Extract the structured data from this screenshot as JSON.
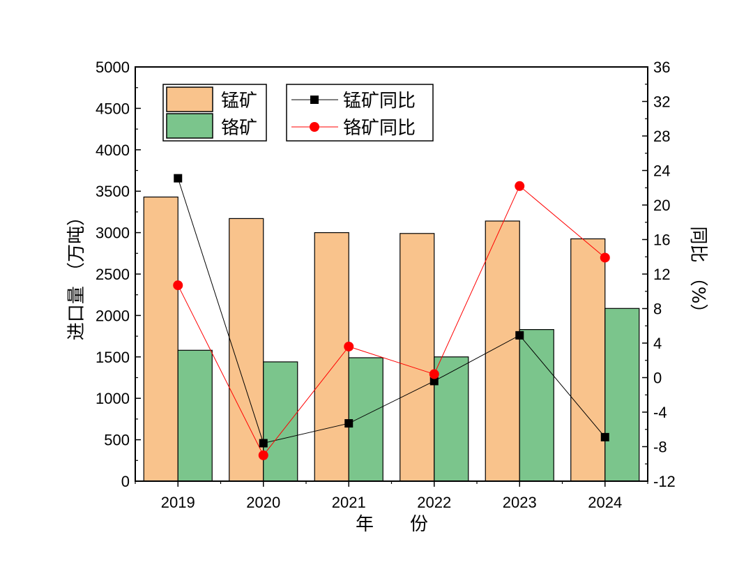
{
  "chart_data": {
    "type": "bar",
    "categories": [
      "2019",
      "2020",
      "2021",
      "2022",
      "2023",
      "2024"
    ],
    "xlabel": "年　　份",
    "ylabel_left": "进口量 （万吨）",
    "ylabel_right": "同比 （%）",
    "ylim_left": [
      0,
      5000
    ],
    "yticks_left": [
      0,
      500,
      1000,
      1500,
      2000,
      2500,
      3000,
      3500,
      4000,
      4500,
      5000
    ],
    "ylim_right": [
      -12,
      36
    ],
    "yticks_right": [
      -12,
      -8,
      -4,
      0,
      4,
      8,
      12,
      16,
      20,
      24,
      28,
      32,
      36
    ],
    "bar_series": [
      {
        "name": "锰矿",
        "color": "#f9c38c",
        "values": [
          3430,
          3170,
          3000,
          2990,
          3140,
          2925
        ]
      },
      {
        "name": "铬矿",
        "color": "#7bc58c",
        "values": [
          1580,
          1440,
          1490,
          1500,
          1830,
          2085
        ]
      }
    ],
    "line_series": [
      {
        "name": "锰矿同比",
        "color": "#000000",
        "marker": "square",
        "values": [
          23.1,
          -7.6,
          -5.3,
          -0.4,
          4.9,
          -6.9
        ]
      },
      {
        "name": "铬矿同比",
        "color": "#ff0000",
        "marker": "circle",
        "values": [
          10.7,
          -9.0,
          3.6,
          0.4,
          22.2,
          13.9
        ]
      }
    ],
    "legend_placement": "top-left",
    "grid": false
  }
}
